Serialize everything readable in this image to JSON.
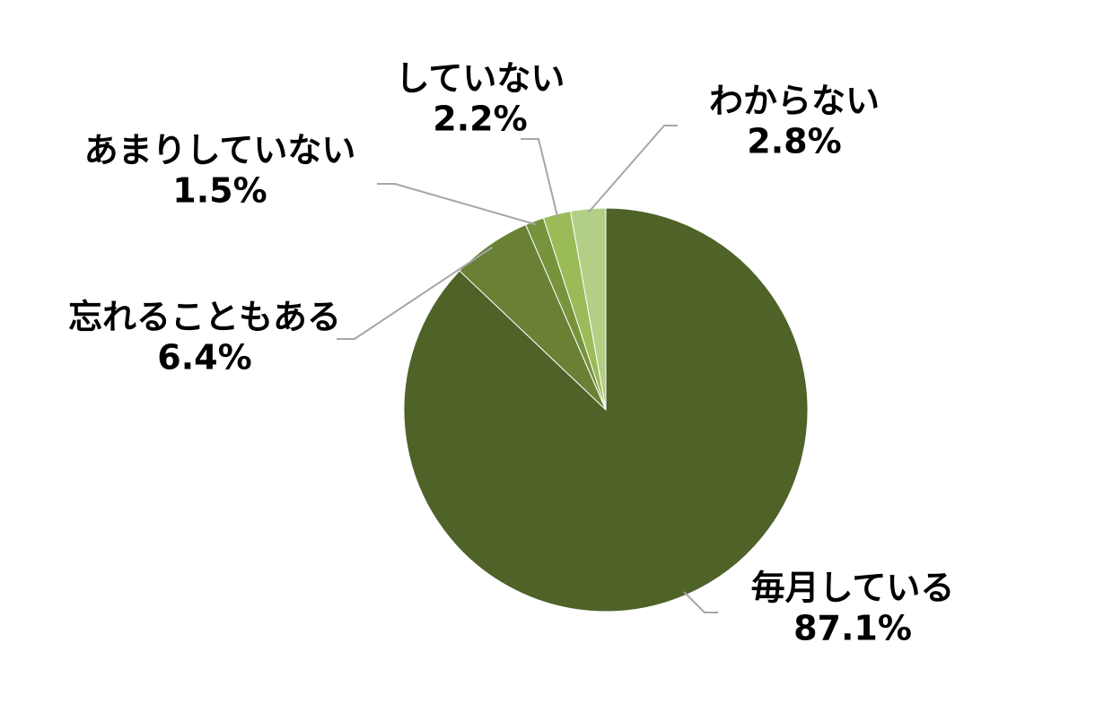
{
  "chart_data": {
    "type": "pie",
    "categories": [
      "毎月している",
      "忘れることもある",
      "あまりしていない",
      "していない",
      "わからない"
    ],
    "values": [
      87.1,
      6.4,
      1.5,
      2.2,
      2.8
    ],
    "value_labels": [
      "87.1%",
      "6.4%",
      "1.5%",
      "2.2%",
      "2.8%"
    ],
    "colors": [
      "#4f6228",
      "#6a8035",
      "#77933c",
      "#9bbb59",
      "#b3cf85"
    ]
  }
}
